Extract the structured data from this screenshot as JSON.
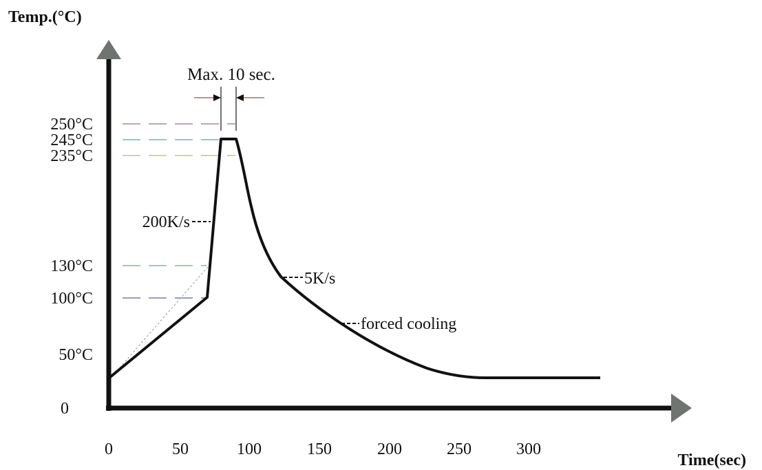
{
  "chart_data": {
    "type": "line",
    "ylabel": "Temp.(°C)",
    "xlabel": "Time(sec)",
    "x_ticks": [
      {
        "value": 0,
        "label": "0"
      },
      {
        "value": 50,
        "label": "50"
      },
      {
        "value": 100,
        "label": "100"
      },
      {
        "value": 150,
        "label": "150"
      },
      {
        "value": 200,
        "label": "200"
      },
      {
        "value": 250,
        "label": "250"
      },
      {
        "value": 300,
        "label": "300"
      }
    ],
    "y_ticks": [
      {
        "value": 0,
        "label": "0"
      },
      {
        "value": 50,
        "label": "50°C"
      },
      {
        "value": 100,
        "label": "100°C"
      },
      {
        "value": 130,
        "label": "130°C"
      },
      {
        "value": 235,
        "label": "235°C"
      },
      {
        "value": 245,
        "label": "245°C"
      },
      {
        "value": 250,
        "label": "250°C"
      }
    ],
    "xlim": [
      0,
      350
    ],
    "ylim": [
      0,
      270
    ],
    "profile": {
      "x": [
        0,
        72,
        82,
        93,
        103,
        110,
        118,
        125,
        135,
        150,
        170,
        195,
        220,
        245,
        270,
        300,
        330,
        360
      ],
      "y": [
        44,
        98,
        233,
        233,
        196,
        168,
        146,
        128,
        117,
        100,
        80,
        63,
        51,
        42,
        38,
        38,
        38,
        38
      ]
    },
    "reference_lines": [
      {
        "y": 250,
        "x_end": 95,
        "color": "#b9a3cf"
      },
      {
        "y": 245,
        "x_end": 82,
        "color": "#8ec9ce"
      },
      {
        "y": 235,
        "x_end": 95,
        "color": "#cfd69a"
      },
      {
        "y": 130,
        "x_end": 72,
        "color": "#9bd0a9"
      },
      {
        "y": 100,
        "x_end": 72,
        "color": "#9a98cf"
      }
    ],
    "annotations": {
      "max_time": "Max. 10 sec.",
      "heating_rate": "200K/s",
      "cooling_rate": "5K/s",
      "forced_cooling": "forced cooling"
    }
  }
}
